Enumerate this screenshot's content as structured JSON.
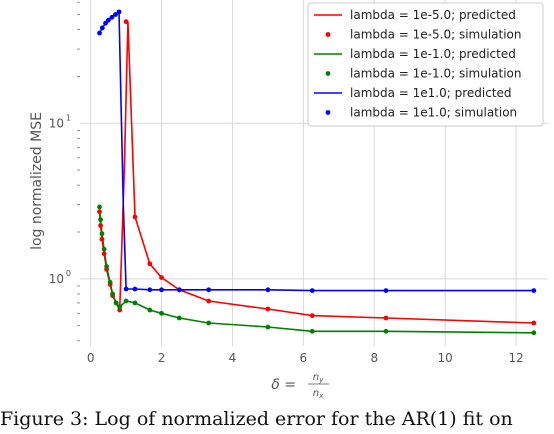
{
  "caption": "Figure 3: Log of normalized error for the AR(1) fit on",
  "chart_data": {
    "type": "line",
    "ylabel": "log normalized MSE",
    "xlabel": "δ = n_y / n_x",
    "xlabel_parts": {
      "lhs": "δ =",
      "num": "n",
      "num_sub": "y",
      "den": "n",
      "den_sub": "x"
    },
    "yscale": "log",
    "xlim": [
      -0.3,
      12.9
    ],
    "ylim": [
      0.37,
      62
    ],
    "xticks": [
      0,
      2,
      4,
      6,
      8,
      10,
      12
    ],
    "xtick_labels": [
      "0",
      "2",
      "4",
      "6",
      "8",
      "10",
      "12"
    ],
    "yticks": [
      1,
      10
    ],
    "ytick_labels": [
      {
        "base": "10",
        "exp": "0"
      },
      {
        "base": "10",
        "exp": "1"
      }
    ],
    "grid": true,
    "legend_position": "top-right",
    "series": [
      {
        "name_predicted": "lambda = 1e-5.0; predicted",
        "name_simulation": "lambda = 1e-5.0; simulation",
        "color": "#ff0000",
        "predicted": {
          "x": [
            0.25,
            0.28,
            0.32,
            0.38,
            0.45,
            0.55,
            0.62,
            0.72,
            0.82,
            0.95,
            1.05,
            1.25,
            1.67,
            2.0,
            2.5,
            3.33,
            5.0,
            6.25,
            8.33,
            12.5
          ],
          "y": [
            2.7,
            2.2,
            1.8,
            1.45,
            1.15,
            0.92,
            0.78,
            0.7,
            0.63,
            5,
            45,
            2.5,
            1.25,
            1.02,
            0.85,
            0.72,
            0.64,
            0.58,
            0.56,
            0.52
          ]
        },
        "simulation": {
          "x": [
            0.25,
            0.28,
            0.32,
            0.38,
            0.45,
            0.55,
            0.62,
            0.72,
            0.82,
            1.0,
            1.25,
            1.67,
            2.0,
            2.5,
            3.33,
            5.0,
            6.25,
            8.33,
            12.5
          ],
          "y": [
            2.7,
            2.2,
            1.8,
            1.45,
            1.15,
            0.92,
            0.78,
            0.7,
            0.63,
            45,
            2.5,
            1.25,
            1.02,
            0.85,
            0.72,
            0.64,
            0.58,
            0.56,
            0.52
          ]
        }
      },
      {
        "name_predicted": "lambda = 1e-1.0; predicted",
        "name_simulation": "lambda = 1e-1.0; simulation",
        "color": "#008000",
        "predicted": {
          "x": [
            0.25,
            0.28,
            0.32,
            0.38,
            0.45,
            0.55,
            0.62,
            0.72,
            0.82,
            1.0,
            1.25,
            1.67,
            2.0,
            2.5,
            3.33,
            5.0,
            6.25,
            8.33,
            12.5
          ],
          "y": [
            2.9,
            2.4,
            1.95,
            1.55,
            1.2,
            0.95,
            0.8,
            0.7,
            0.66,
            0.72,
            0.7,
            0.63,
            0.6,
            0.56,
            0.52,
            0.49,
            0.46,
            0.46,
            0.45
          ]
        },
        "simulation": {
          "x": [
            0.25,
            0.28,
            0.32,
            0.38,
            0.45,
            0.55,
            0.62,
            0.72,
            0.82,
            1.0,
            1.25,
            1.67,
            2.0,
            2.5,
            3.33,
            5.0,
            6.25,
            8.33,
            12.5
          ],
          "y": [
            2.9,
            2.4,
            1.95,
            1.55,
            1.2,
            0.95,
            0.8,
            0.7,
            0.66,
            0.72,
            0.7,
            0.63,
            0.6,
            0.56,
            0.52,
            0.49,
            0.46,
            0.46,
            0.45
          ]
        }
      },
      {
        "name_predicted": "lambda = 1e1.0; predicted",
        "name_simulation": "lambda = 1e1.0; simulation",
        "color": "#0000ff",
        "predicted": {
          "x": [
            0.25,
            0.33,
            0.42,
            0.5,
            0.6,
            0.7,
            0.8,
            0.92,
            1.0,
            1.25,
            1.67,
            2.0,
            2.5,
            3.33,
            5.0,
            6.25,
            8.33,
            12.5
          ],
          "y": [
            38,
            41,
            44,
            46,
            48,
            50,
            52,
            3.0,
            0.86,
            0.86,
            0.85,
            0.85,
            0.85,
            0.85,
            0.85,
            0.84,
            0.84,
            0.84
          ]
        },
        "simulation": {
          "x": [
            0.25,
            0.33,
            0.42,
            0.5,
            0.6,
            0.7,
            0.8,
            1.0,
            1.25,
            1.67,
            2.0,
            2.5,
            3.33,
            5.0,
            6.25,
            8.33,
            12.5
          ],
          "y": [
            38,
            41,
            44,
            46,
            48,
            50,
            52,
            0.86,
            0.86,
            0.85,
            0.85,
            0.85,
            0.85,
            0.85,
            0.84,
            0.84,
            0.84
          ]
        }
      }
    ]
  }
}
